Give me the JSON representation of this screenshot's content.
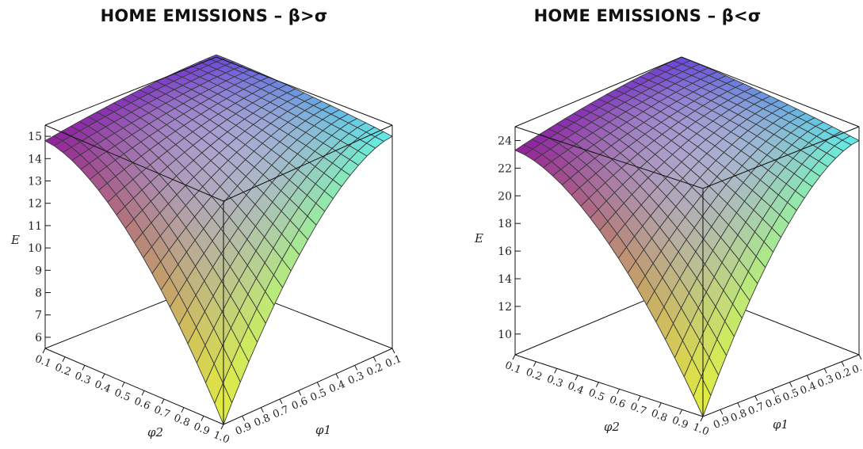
{
  "chart_data": [
    {
      "type": "surface3d",
      "title": "HOME EMISSIONS  –  β>σ",
      "xlabel": "φ2",
      "ylabel": "φ1",
      "zlabel": "E",
      "x_ticks": [
        "0.1",
        "0.2",
        "0.3",
        "0.4",
        "0.5",
        "0.6",
        "0.7",
        "0.8",
        "0.9",
        "1.0"
      ],
      "y_ticks": [
        "0.1",
        "0.2",
        "0.3",
        "0.4",
        "0.5",
        "0.6",
        "0.7",
        "0.8",
        "0.9"
      ],
      "z_ticks": [
        "6",
        "7",
        "8",
        "9",
        "10",
        "11",
        "12",
        "13",
        "14",
        "15"
      ],
      "xlim": [
        0.1,
        1.0
      ],
      "ylim": [
        0.1,
        1.0
      ],
      "zlim": [
        5.5,
        15.5
      ],
      "grid": "20x20 mesh",
      "colormap": "magenta-blue-cyan-yellow",
      "corner_values": {
        "phi2_0.1_phi1_0.1": 15.6,
        "phi2_0.1_phi1_1.0": 14.8,
        "phi2_1.0_phi1_0.1": 15.0,
        "phi2_1.0_phi1_1.0": 5.5
      }
    },
    {
      "type": "surface3d",
      "title": "HOME EMISSIONS  –  β<σ",
      "xlabel": "φ2",
      "ylabel": "φ1",
      "zlabel": "E",
      "x_ticks": [
        "0.1",
        "0.2",
        "0.3",
        "0.4",
        "0.5",
        "0.6",
        "0.7",
        "0.8",
        "0.9",
        "1.0"
      ],
      "y_ticks": [
        "0.1",
        "0.2",
        "0.3",
        "0.4",
        "0.5",
        "0.6",
        "0.7",
        "0.8",
        "0.9"
      ],
      "z_ticks": [
        "10",
        "12",
        "14",
        "16",
        "18",
        "20",
        "22",
        "24"
      ],
      "xlim": [
        0.1,
        1.0
      ],
      "ylim": [
        0.1,
        1.0
      ],
      "zlim": [
        8.5,
        25
      ],
      "grid": "20x20 mesh",
      "colormap": "magenta-blue-cyan-yellow",
      "corner_values": {
        "phi2_0.1_phi1_0.1": 25.0,
        "phi2_0.1_phi1_1.0": 23.3,
        "phi2_1.0_phi1_0.1": 24.0,
        "phi2_1.0_phi1_1.0": 8.5
      }
    }
  ]
}
